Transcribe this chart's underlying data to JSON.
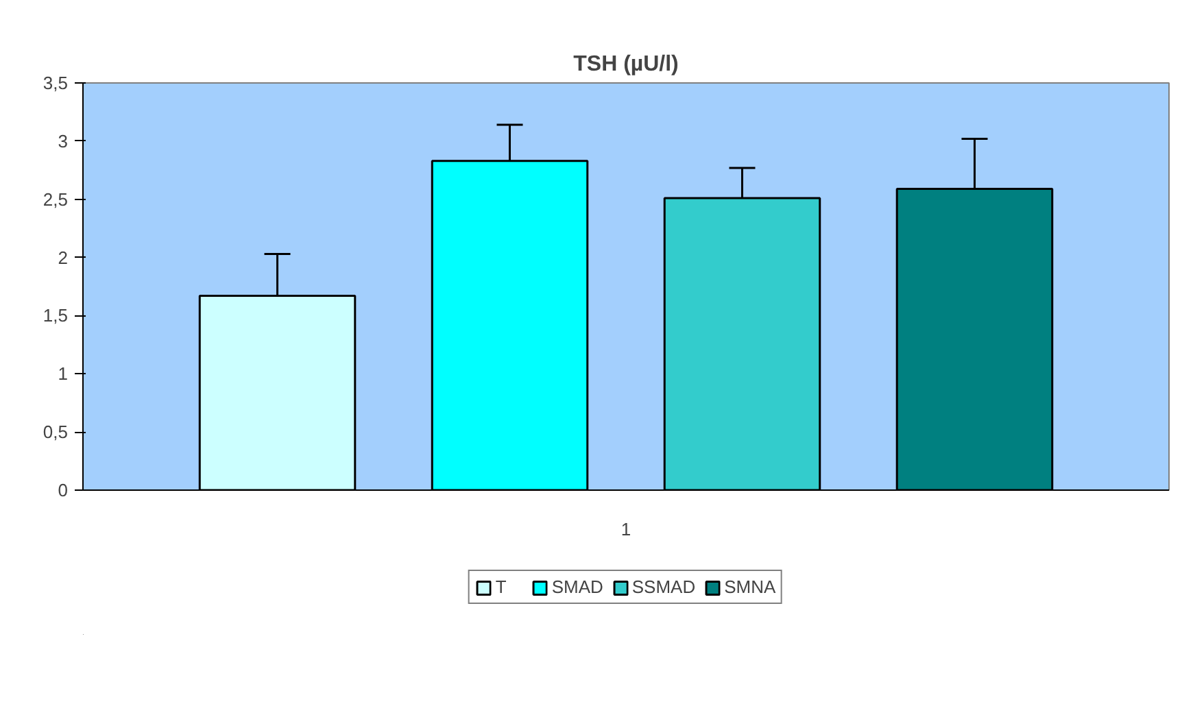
{
  "chart_data": {
    "type": "bar",
    "title": "TSH (µU/l)",
    "categories": [
      "1"
    ],
    "series": [
      {
        "name": "T",
        "color": "#ccffff",
        "values": [
          1.67
        ],
        "errors": [
          [
            1.67,
            2.03
          ]
        ]
      },
      {
        "name": "SMAD",
        "color": "#00ffff",
        "values": [
          2.83
        ],
        "errors": [
          [
            2.83,
            3.14
          ]
        ]
      },
      {
        "name": "SSMAD",
        "color": "#33cccc",
        "values": [
          2.51
        ],
        "errors": [
          [
            2.51,
            2.77
          ]
        ]
      },
      {
        "name": "SMNA",
        "color": "#008080",
        "values": [
          2.59
        ],
        "errors": [
          [
            2.59,
            3.02
          ]
        ]
      }
    ],
    "ylim": [
      0,
      3.5
    ],
    "yticks": [
      0,
      {
        "value": 0.5,
        "label": "0,5"
      },
      1,
      {
        "value": 1.5,
        "label": "1,5"
      },
      2,
      {
        "value": 2.5,
        "label": "2,5"
      },
      3,
      {
        "value": 3.5,
        "label": "3,5"
      }
    ],
    "grid": false,
    "legend": "bottom"
  }
}
